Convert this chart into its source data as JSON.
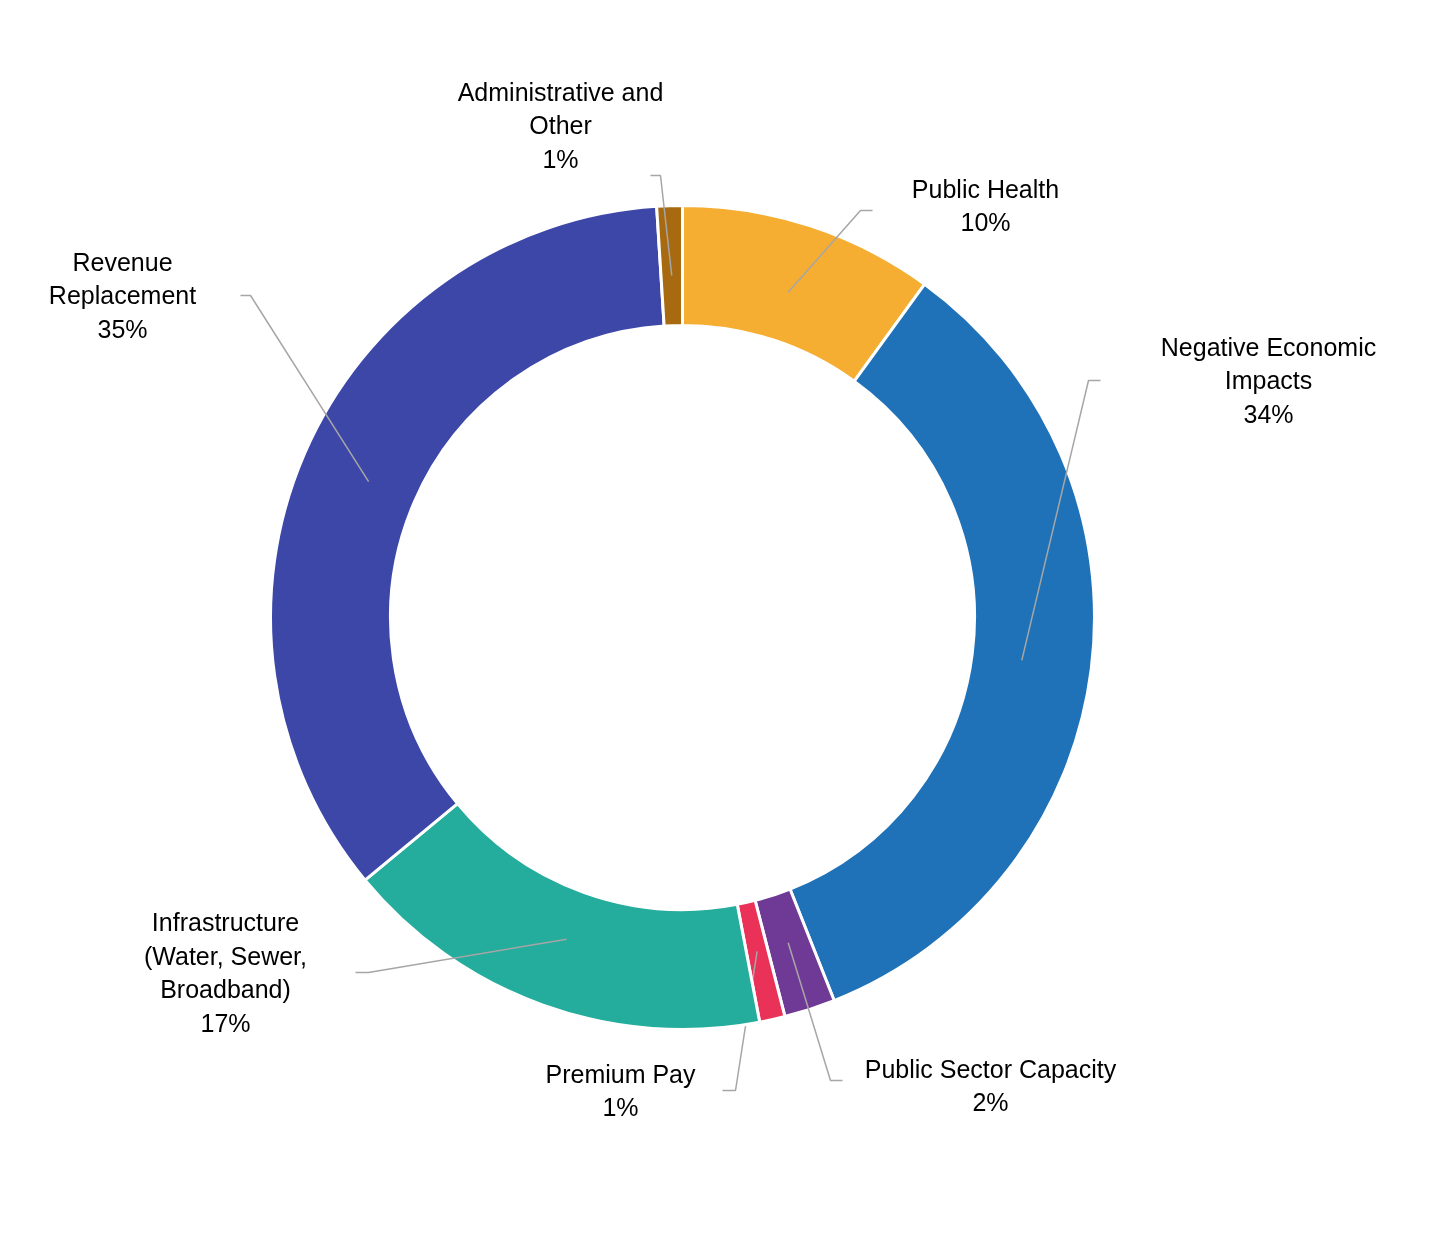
{
  "chart_data": {
    "type": "donut",
    "categories": [
      "Public Health",
      "Negative Economic Impacts",
      "Public Sector Capacity",
      "Premium Pay",
      "Infrastructure (Water, Sewer, Broadband)",
      "Revenue Replacement",
      "Administrative and Other"
    ],
    "values": [
      10,
      34,
      2,
      1,
      17,
      35,
      1
    ],
    "value_labels": [
      "10%",
      "34%",
      "2%",
      "1%",
      "17%",
      "35%",
      "1%"
    ],
    "colors": [
      "#f5ae31",
      "#1f72b8",
      "#6f3a96",
      "#ea3157",
      "#24ac9c",
      "#3d47a8",
      "#a86a10"
    ]
  }
}
